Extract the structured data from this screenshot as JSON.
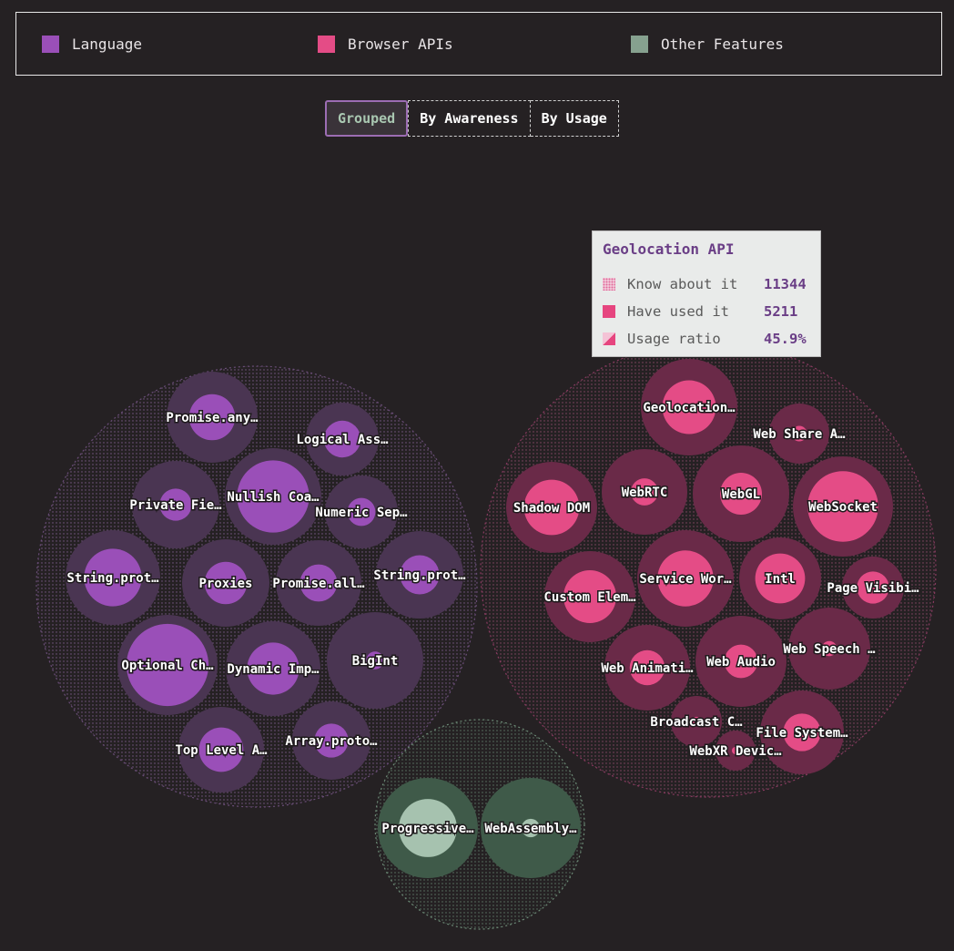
{
  "legend": [
    {
      "label": "Language",
      "color": "#9a4fb8"
    },
    {
      "label": "Browser APIs",
      "color": "#e44c86"
    },
    {
      "label": "Other Features",
      "color": "#86a18f"
    }
  ],
  "toggle": {
    "grouped": "Grouped",
    "by_awareness": "By Awareness",
    "by_usage": "By Usage"
  },
  "tooltip": {
    "title": "Geolocation API",
    "know_label": "Know about it",
    "know_value": "11344",
    "used_label": "Have used it",
    "used_value": "5211",
    "ratio_label": "Usage ratio",
    "ratio_value": "45.9%"
  },
  "chart_data": {
    "type": "bubble",
    "categories": [
      "Language",
      "Browser APIs",
      "Other Features"
    ],
    "colors": {
      "Language": {
        "outer": "#4a3552",
        "inner": "#9a4fb8"
      },
      "Browser APIs": {
        "outer": "#6a2a48",
        "inner": "#e44c86"
      },
      "Other Features": {
        "outer": "#3f5a49",
        "inner": "#a6c2af"
      }
    },
    "items": [
      {
        "label": "Promise.any…",
        "group": "Language",
        "ratio": 0.38
      },
      {
        "label": "Logical Ass…",
        "group": "Language",
        "ratio": 0.38
      },
      {
        "label": "Private Fie…",
        "group": "Language",
        "ratio": 0.2
      },
      {
        "label": "Nullish Coa…",
        "group": "Language",
        "ratio": 0.83
      },
      {
        "label": "Numeric Sep…",
        "group": "Language",
        "ratio": 0.22
      },
      {
        "label": "String.prot…",
        "group": "Language",
        "ratio": 0.55
      },
      {
        "label": "Proxies",
        "group": "Language",
        "ratio": 0.35
      },
      {
        "label": "Promise.all…",
        "group": "Language",
        "ratio": 0.28
      },
      {
        "label": "String.prot…",
        "group": "Language",
        "ratio": 0.3
      },
      {
        "label": "Optional Ch…",
        "group": "Language",
        "ratio": 1.0
      },
      {
        "label": "Dynamic Imp…",
        "group": "Language",
        "ratio": 0.45
      },
      {
        "label": "BigInt",
        "group": "Language",
        "ratio": 0.05
      },
      {
        "label": "Top Level A…",
        "group": "Language",
        "ratio": 0.4
      },
      {
        "label": "Array.proto…",
        "group": "Language",
        "ratio": 0.28
      },
      {
        "label": "Geolocation…",
        "group": "Browser APIs",
        "ratio": 0.459
      },
      {
        "label": "Web Share A…",
        "group": "Browser APIs",
        "ratio": 0.1
      },
      {
        "label": "Shadow DOM",
        "group": "Browser APIs",
        "ratio": 0.55
      },
      {
        "label": "WebRTC",
        "group": "Browser APIs",
        "ratio": 0.15
      },
      {
        "label": "WebGL",
        "group": "Browser APIs",
        "ratio": 0.28
      },
      {
        "label": "WebSocket",
        "group": "Browser APIs",
        "ratio": 0.74
      },
      {
        "label": "Custom Elem…",
        "group": "Browser APIs",
        "ratio": 0.5
      },
      {
        "label": "Service Wor…",
        "group": "Browser APIs",
        "ratio": 0.5
      },
      {
        "label": "Intl",
        "group": "Browser APIs",
        "ratio": 0.55
      },
      {
        "label": "Page Visibi…",
        "group": "Browser APIs",
        "ratio": 0.4
      },
      {
        "label": "Web Animati…",
        "group": "Browser APIs",
        "ratio": 0.25
      },
      {
        "label": "Web Audio",
        "group": "Browser APIs",
        "ratio": 0.2
      },
      {
        "label": "Web Speech …",
        "group": "Browser APIs",
        "ratio": 0.05
      },
      {
        "label": "Broadcast C…",
        "group": "Browser APIs",
        "ratio": 0.05
      },
      {
        "label": "File System…",
        "group": "Browser APIs",
        "ratio": 0.3
      },
      {
        "label": "WebXR Devic…",
        "group": "Browser APIs",
        "ratio": 0.05
      },
      {
        "label": "Progressive…",
        "group": "Other Features",
        "ratio": 0.5
      },
      {
        "label": "WebAssembly…",
        "group": "Other Features",
        "ratio": 0.05
      }
    ]
  }
}
